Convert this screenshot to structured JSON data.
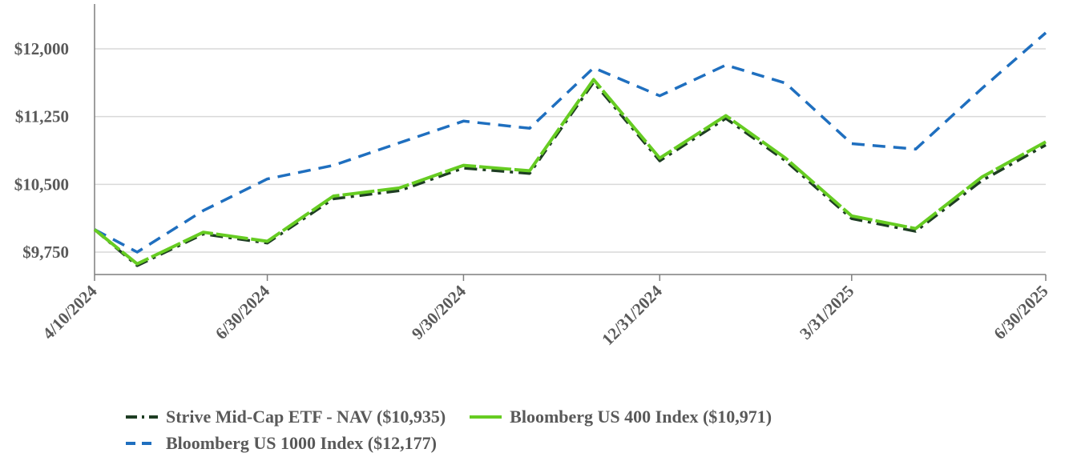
{
  "chart_data": {
    "type": "line",
    "title": "",
    "xlabel": "",
    "ylabel": "",
    "ylim": [
      9500,
      12500
    ],
    "yticks": [
      9750,
      10500,
      11250,
      12000
    ],
    "ytick_labels": [
      "$9,750",
      "$10,500",
      "$11,250",
      "$12,000"
    ],
    "x": [
      "2024-04-10",
      "2024-04-30",
      "2024-05-31",
      "2024-06-30",
      "2024-07-31",
      "2024-08-31",
      "2024-09-30",
      "2024-10-31",
      "2024-11-30",
      "2024-12-31",
      "2025-01-31",
      "2025-02-28",
      "2025-03-31",
      "2025-04-30",
      "2025-05-31",
      "2025-06-30"
    ],
    "xticks": [
      "4/10/2024",
      "6/30/2024",
      "9/30/2024",
      "12/31/2024",
      "3/31/2025",
      "6/30/2025"
    ],
    "grid": "horizontal",
    "legend_position": "bottom",
    "series": [
      {
        "name": "Strive Mid-Cap ETF - NAV ($10,935)",
        "color": "#1e3d23",
        "dash": "dash-dot",
        "values": [
          10000,
          9600,
          9950,
          9850,
          10340,
          10430,
          10680,
          10620,
          11630,
          10760,
          11230,
          10760,
          10120,
          9980,
          10540,
          10935
        ]
      },
      {
        "name": "Bloomberg US 400 Index ($10,971)",
        "color": "#66cc22",
        "dash": "solid-long-dash",
        "values": [
          10000,
          9620,
          9970,
          9870,
          10370,
          10460,
          10710,
          10650,
          11660,
          10790,
          11260,
          10790,
          10150,
          10010,
          10580,
          10971
        ]
      },
      {
        "name": "Bloomberg US 1000 Index ($12,177)",
        "color": "#1f6fbf",
        "dash": "dash",
        "values": [
          10000,
          9750,
          10210,
          10560,
          10710,
          10960,
          11200,
          11120,
          11790,
          11480,
          11820,
          11620,
          10950,
          10890,
          11560,
          12177
        ]
      }
    ]
  },
  "legend": {
    "nav_label": "Strive Mid-Cap ETF - NAV ($10,935)",
    "idx400_label": "Bloomberg US 400 Index ($10,971)",
    "idx1000_label": "Bloomberg US 1000 Index ($12,177)"
  }
}
